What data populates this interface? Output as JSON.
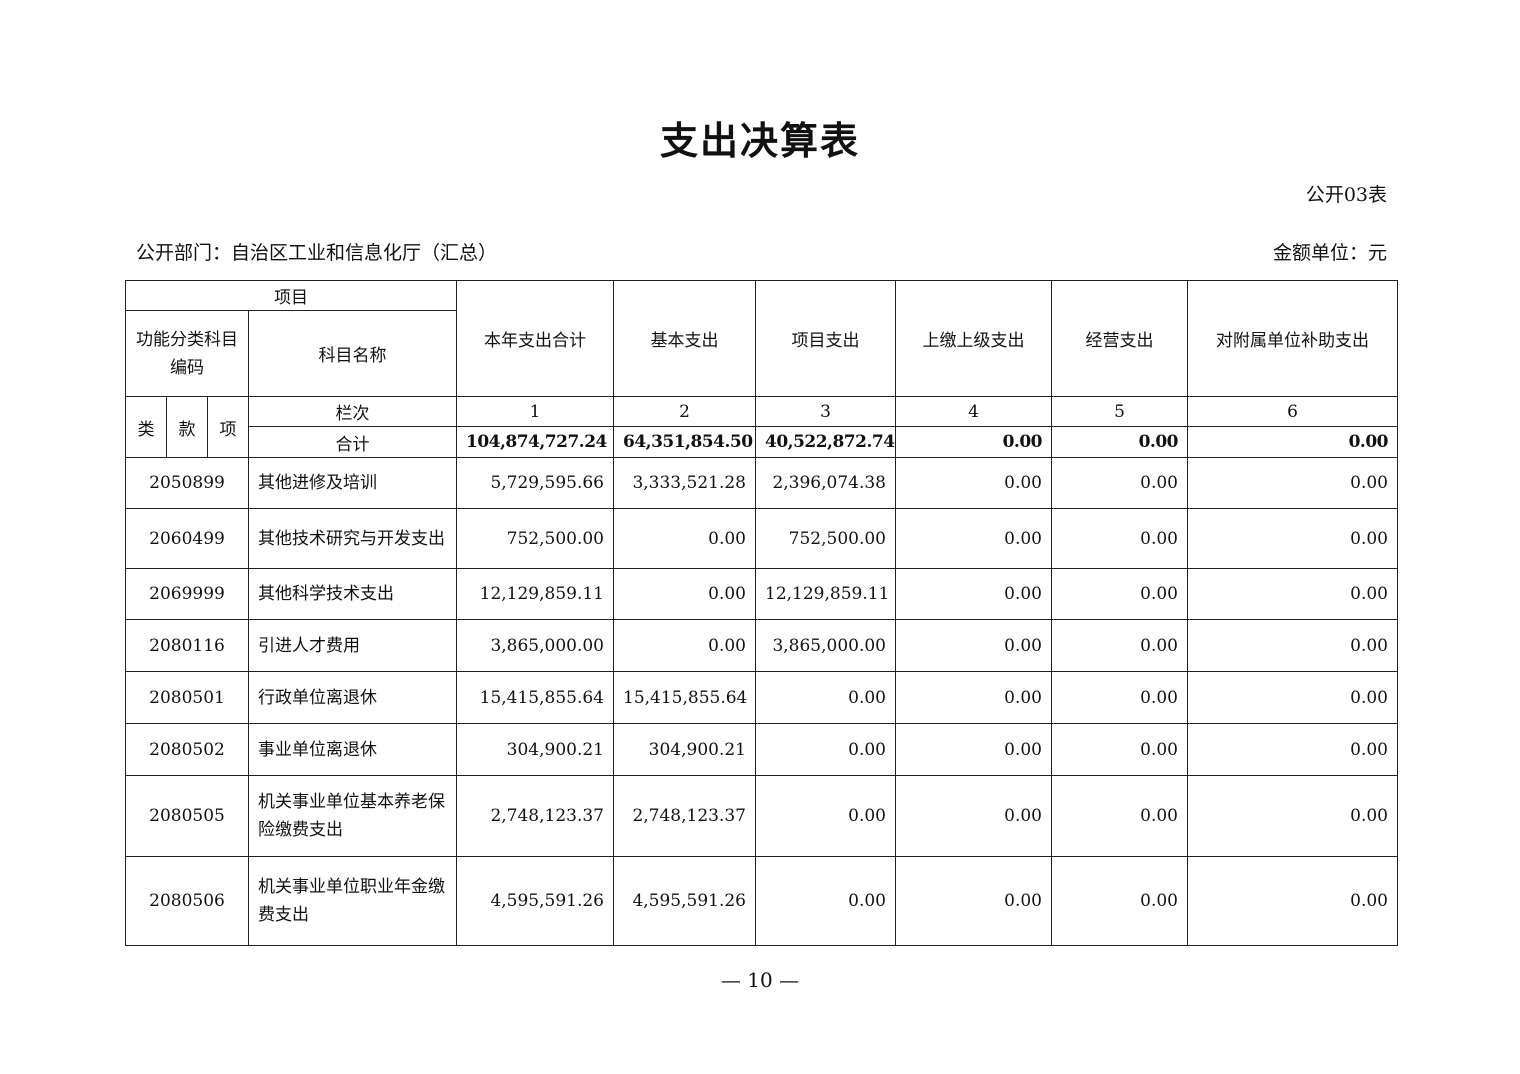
{
  "title": "支出决算表",
  "table_no": "公开03表",
  "department": "公开部门：自治区工业和信息化厅（汇总）",
  "unit": "金额单位：元",
  "header": {
    "item": "项目",
    "func_code": "功能分类科目编码",
    "subject_name": "科目名称",
    "columns": [
      "本年支出合计",
      "基本支出",
      "项目支出",
      "上缴上级支出",
      "经营支出",
      "对附属单位补助支出"
    ],
    "lei": "类",
    "kuan": "款",
    "xiang": "项",
    "column_no_label": "栏次",
    "column_nos": [
      "1",
      "2",
      "3",
      "4",
      "5",
      "6"
    ],
    "total_label": "合计",
    "totals": [
      "104,874,727.24",
      "64,351,854.50",
      "40,522,872.74",
      "0.00",
      "0.00",
      "0.00"
    ]
  },
  "rows": [
    {
      "code": "2050899",
      "name": "其他进修及培训",
      "values": [
        "5,729,595.66",
        "3,333,521.28",
        "2,396,074.38",
        "0.00",
        "0.00",
        "0.00"
      ]
    },
    {
      "code": "2060499",
      "name": "其他技术研究与开发支出",
      "values": [
        "752,500.00",
        "0.00",
        "752,500.00",
        "0.00",
        "0.00",
        "0.00"
      ]
    },
    {
      "code": "2069999",
      "name": "其他科学技术支出",
      "values": [
        "12,129,859.11",
        "0.00",
        "12,129,859.11",
        "0.00",
        "0.00",
        "0.00"
      ]
    },
    {
      "code": "2080116",
      "name": "引进人才费用",
      "values": [
        "3,865,000.00",
        "0.00",
        "3,865,000.00",
        "0.00",
        "0.00",
        "0.00"
      ]
    },
    {
      "code": "2080501",
      "name": "行政单位离退休",
      "values": [
        "15,415,855.64",
        "15,415,855.64",
        "0.00",
        "0.00",
        "0.00",
        "0.00"
      ]
    },
    {
      "code": "2080502",
      "name": "事业单位离退休",
      "values": [
        "304,900.21",
        "304,900.21",
        "0.00",
        "0.00",
        "0.00",
        "0.00"
      ]
    },
    {
      "code": "2080505",
      "name": "机关事业单位基本养老保险缴费支出",
      "values": [
        "2,748,123.37",
        "2,748,123.37",
        "0.00",
        "0.00",
        "0.00",
        "0.00"
      ]
    },
    {
      "code": "2080506",
      "name": "机关事业单位职业年金缴费支出",
      "values": [
        "4,595,591.26",
        "4,595,591.26",
        "0.00",
        "0.00",
        "0.00",
        "0.00"
      ]
    }
  ],
  "page_number": "— 10 —"
}
